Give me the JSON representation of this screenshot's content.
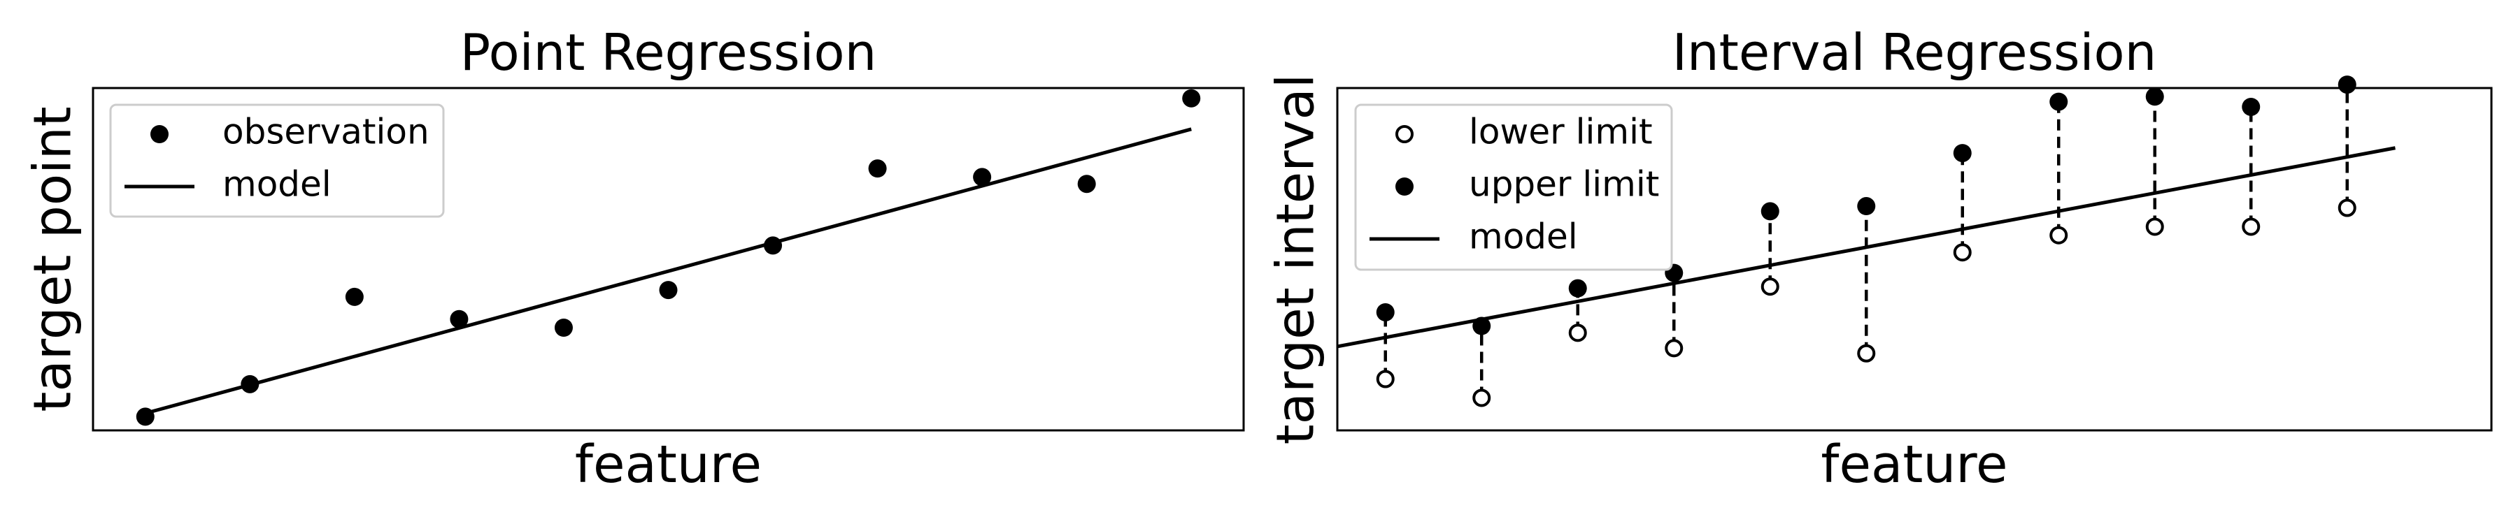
{
  "chart_data": [
    {
      "type": "scatter",
      "title": "Point Regression",
      "xlabel": "feature",
      "ylabel": "target point",
      "xlim": [
        -0.5,
        10.5
      ],
      "ylim": [
        -0.4,
        9.6
      ],
      "ticks": false,
      "grid": false,
      "legend": {
        "placement": "upper-left",
        "entries": [
          {
            "label": "observation",
            "marker": "filled-circle"
          },
          {
            "label": "model",
            "marker": "line"
          }
        ]
      },
      "series": [
        {
          "name": "observation",
          "kind": "scatter",
          "x": [
            0,
            1,
            2,
            3,
            4,
            5,
            6,
            7,
            8,
            9,
            10
          ],
          "y": [
            0,
            0.95,
            3.5,
            2.85,
            2.6,
            3.7,
            5.0,
            7.25,
            7.0,
            6.8,
            9.3
          ]
        },
        {
          "name": "model",
          "kind": "line",
          "x": [
            0,
            10
          ],
          "y": [
            0.1,
            8.4
          ]
        }
      ]
    },
    {
      "type": "scatter",
      "title": "Interval Regression",
      "xlabel": "feature",
      "ylabel": "target interval",
      "xlim": [
        -0.5,
        11.5
      ],
      "ylim": [
        -0.5,
        9.5
      ],
      "ticks": false,
      "grid": false,
      "legend": {
        "placement": "upper-left",
        "entries": [
          {
            "label": "lower limit",
            "marker": "open-circle"
          },
          {
            "label": "upper limit",
            "marker": "filled-circle"
          },
          {
            "label": "model",
            "marker": "line"
          }
        ]
      },
      "x": [
        0,
        1,
        2,
        3,
        4,
        5,
        6,
        7,
        8,
        9,
        10
      ],
      "series": [
        {
          "name": "lower limit",
          "kind": "scatter-open",
          "y": [
            1.0,
            0.45,
            2.35,
            1.9,
            3.7,
            1.75,
            4.7,
            5.2,
            5.45,
            5.45,
            6.0
          ]
        },
        {
          "name": "upper limit",
          "kind": "scatter",
          "y": [
            2.95,
            2.55,
            3.65,
            4.1,
            5.9,
            6.05,
            7.6,
            9.1,
            9.25,
            8.95,
            9.6
          ]
        },
        {
          "name": "model",
          "kind": "line",
          "x": [
            -0.5,
            10.5
          ],
          "y": [
            1.95,
            7.75
          ]
        }
      ]
    }
  ]
}
